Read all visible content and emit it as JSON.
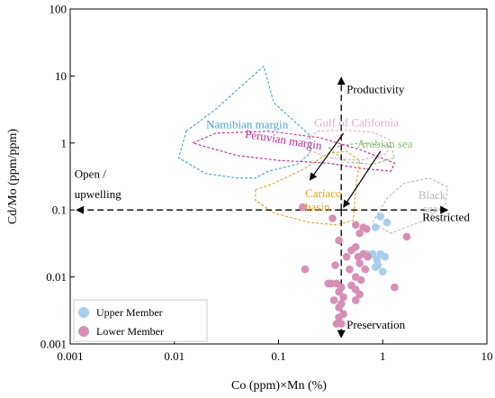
{
  "chart_data": {
    "type": "scatter",
    "xlabel": "Co (ppm)×Mn (%)",
    "ylabel": "Cd/Mo (ppm/ppm)",
    "xscale": "log",
    "yscale": "log",
    "xlim": [
      0.001,
      10
    ],
    "ylim": [
      0.001,
      100
    ],
    "xticks": [
      {
        "value": 0.001,
        "label": "0.001"
      },
      {
        "value": 0.01,
        "label": "0.01"
      },
      {
        "value": 0.1,
        "label": "0.1"
      },
      {
        "value": 1,
        "label": "1"
      },
      {
        "value": 10,
        "label": "10"
      }
    ],
    "yticks": [
      {
        "value": 0.001,
        "label": "0.001"
      },
      {
        "value": 0.01,
        "label": "0.01"
      },
      {
        "value": 0.1,
        "label": "0.1"
      },
      {
        "value": 1,
        "label": "1"
      },
      {
        "value": 10,
        "label": "10"
      },
      {
        "value": 100,
        "label": "100"
      }
    ],
    "grid": false,
    "legend_position": "bottom-left",
    "series": [
      {
        "name": "Upper Member",
        "color": "#a8cff0",
        "points": [
          {
            "x": 0.95,
            "y": 0.08
          },
          {
            "x": 1.1,
            "y": 0.065
          },
          {
            "x": 0.85,
            "y": 0.055
          },
          {
            "x": 0.8,
            "y": 0.022
          },
          {
            "x": 0.95,
            "y": 0.022
          },
          {
            "x": 1.05,
            "y": 0.02
          },
          {
            "x": 0.88,
            "y": 0.018
          },
          {
            "x": 0.9,
            "y": 0.015
          },
          {
            "x": 0.85,
            "y": 0.014
          },
          {
            "x": 1.0,
            "y": 0.012
          },
          {
            "x": 0.7,
            "y": 0.022
          }
        ]
      },
      {
        "name": "Lower Member",
        "color": "#d98fb5",
        "points": [
          {
            "x": 0.17,
            "y": 0.11
          },
          {
            "x": 0.33,
            "y": 0.075
          },
          {
            "x": 0.55,
            "y": 0.06
          },
          {
            "x": 0.65,
            "y": 0.055
          },
          {
            "x": 0.7,
            "y": 0.052
          },
          {
            "x": 0.6,
            "y": 0.045
          },
          {
            "x": 1.7,
            "y": 0.04
          },
          {
            "x": 0.38,
            "y": 0.035
          },
          {
            "x": 0.55,
            "y": 0.028
          },
          {
            "x": 0.5,
            "y": 0.025
          },
          {
            "x": 0.65,
            "y": 0.022
          },
          {
            "x": 0.45,
            "y": 0.02
          },
          {
            "x": 0.58,
            "y": 0.02
          },
          {
            "x": 0.72,
            "y": 0.02
          },
          {
            "x": 0.6,
            "y": 0.016
          },
          {
            "x": 0.35,
            "y": 0.015
          },
          {
            "x": 0.48,
            "y": 0.013
          },
          {
            "x": 0.68,
            "y": 0.013
          },
          {
            "x": 0.18,
            "y": 0.013
          },
          {
            "x": 0.55,
            "y": 0.01
          },
          {
            "x": 0.62,
            "y": 0.009
          },
          {
            "x": 0.3,
            "y": 0.008
          },
          {
            "x": 0.32,
            "y": 0.008
          },
          {
            "x": 0.36,
            "y": 0.008
          },
          {
            "x": 0.4,
            "y": 0.007
          },
          {
            "x": 0.5,
            "y": 0.0075
          },
          {
            "x": 0.55,
            "y": 0.0065
          },
          {
            "x": 1.3,
            "y": 0.007
          },
          {
            "x": 0.38,
            "y": 0.006
          },
          {
            "x": 0.6,
            "y": 0.0055
          },
          {
            "x": 0.42,
            "y": 0.005
          },
          {
            "x": 0.34,
            "y": 0.0045
          },
          {
            "x": 0.4,
            "y": 0.004
          },
          {
            "x": 0.55,
            "y": 0.0045
          },
          {
            "x": 0.38,
            "y": 0.0035
          },
          {
            "x": 0.42,
            "y": 0.0028
          },
          {
            "x": 0.38,
            "y": 0.0025
          },
          {
            "x": 0.36,
            "y": 0.002
          },
          {
            "x": 0.4,
            "y": 0.002
          }
        ]
      }
    ],
    "regions": [
      {
        "label": "Namibian margin",
        "color": "#3fa3e0",
        "label_at": {
          "x": 0.05,
          "y": 1.65
        },
        "polygon": [
          [
            0.013,
            1.5
          ],
          [
            0.025,
            3.2
          ],
          [
            0.072,
            14
          ],
          [
            0.09,
            4
          ],
          [
            0.2,
            1.3
          ],
          [
            0.2,
            0.7
          ],
          [
            0.15,
            0.48
          ],
          [
            0.08,
            0.38
          ],
          [
            0.06,
            0.3
          ],
          [
            0.04,
            0.3
          ],
          [
            0.02,
            0.35
          ],
          [
            0.011,
            0.6
          ],
          [
            0.013,
            1.5
          ]
        ]
      },
      {
        "label": "Peruvian margin",
        "color": "#c0289a",
        "label_at": {
          "x": 0.11,
          "y": 0.98
        },
        "polygon": [
          [
            0.015,
            1.0
          ],
          [
            0.025,
            1.4
          ],
          [
            0.08,
            1.5
          ],
          [
            0.25,
            1.2
          ],
          [
            0.6,
            0.8
          ],
          [
            1.3,
            0.5
          ],
          [
            1.2,
            0.38
          ],
          [
            0.6,
            0.42
          ],
          [
            0.3,
            0.5
          ],
          [
            0.1,
            0.55
          ],
          [
            0.04,
            0.65
          ],
          [
            0.015,
            1.0
          ]
        ]
      },
      {
        "label": "Gulf of California",
        "color": "#f0a8cc",
        "label_at": {
          "x": 0.56,
          "y": 1.75
        },
        "polygon": [
          [
            0.17,
            1.05
          ],
          [
            0.24,
            1.5
          ],
          [
            0.4,
            1.55
          ],
          [
            0.8,
            1.45
          ],
          [
            1.2,
            1.1
          ],
          [
            1.1,
            0.7
          ],
          [
            0.6,
            0.55
          ],
          [
            0.3,
            0.6
          ],
          [
            0.19,
            0.8
          ],
          [
            0.17,
            1.05
          ]
        ]
      },
      {
        "label": "Arabian sea",
        "color": "#8dbf7a",
        "label_at": {
          "x": 1.05,
          "y": 0.85
        },
        "polygon": [
          [
            0.3,
            0.85
          ],
          [
            0.6,
            1.0
          ],
          [
            1.2,
            0.9
          ],
          [
            1.3,
            0.6
          ],
          [
            0.8,
            0.48
          ],
          [
            0.45,
            0.52
          ],
          [
            0.3,
            0.85
          ]
        ]
      },
      {
        "label": "Cariaco basin",
        "color": "#e8a317",
        "label_at": {
          "x": 0.18,
          "y": 0.155
        },
        "polygon": [
          [
            0.06,
            0.2
          ],
          [
            0.09,
            0.25
          ],
          [
            0.17,
            0.4
          ],
          [
            0.3,
            0.7
          ],
          [
            0.45,
            0.75
          ],
          [
            0.6,
            0.55
          ],
          [
            0.55,
            0.2
          ],
          [
            0.52,
            0.07
          ],
          [
            0.36,
            0.06
          ],
          [
            0.2,
            0.065
          ],
          [
            0.09,
            0.09
          ],
          [
            0.06,
            0.14
          ],
          [
            0.06,
            0.2
          ]
        ]
      },
      {
        "label": "Black sea",
        "color": "#b8b8b8",
        "label_at": {
          "x": 2.2,
          "y": 0.145
        },
        "polygon": [
          [
            0.8,
            0.065
          ],
          [
            1.1,
            0.15
          ],
          [
            1.6,
            0.25
          ],
          [
            2.8,
            0.3
          ],
          [
            4.2,
            0.22
          ],
          [
            4.0,
            0.12
          ],
          [
            2.5,
            0.07
          ],
          [
            1.2,
            0.045
          ],
          [
            0.8,
            0.065
          ]
        ]
      }
    ],
    "annotations": [
      {
        "text": "Productivity",
        "at": {
          "x": 0.45,
          "y": 5.5
        }
      },
      {
        "text": "Preservation",
        "at": {
          "x": 0.45,
          "y": 0.0017
        }
      },
      {
        "text": "Open /",
        "at": {
          "x": 0.0011,
          "y": 0.3
        }
      },
      {
        "text": "upwelling",
        "at": {
          "x": 0.0011,
          "y": 0.15
        }
      },
      {
        "text": "Restricted",
        "at": {
          "x": 2.4,
          "y": 0.068
        }
      }
    ],
    "crosshair": {
      "x": 0.4,
      "y": 0.1
    },
    "legend": [
      {
        "label": "Upper Member",
        "color": "#a8cff0"
      },
      {
        "label": "Lower Member",
        "color": "#d98fb5"
      }
    ]
  }
}
